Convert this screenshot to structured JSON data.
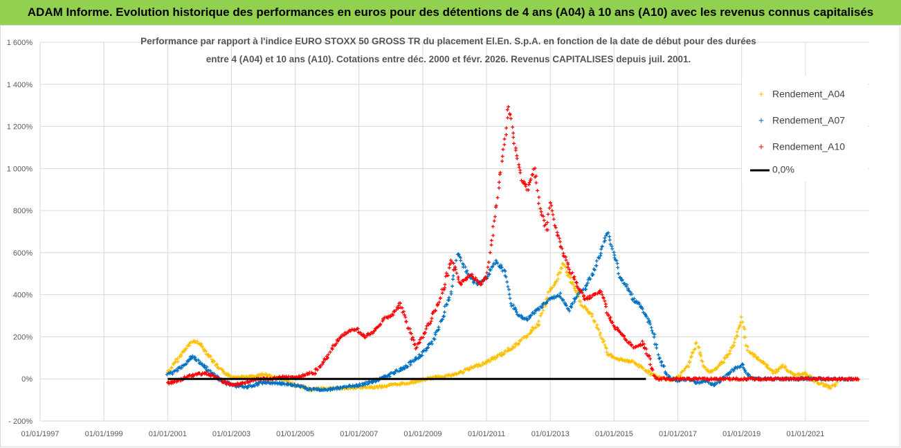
{
  "header": {
    "banner": "ADAM Informe. Evolution historique des performances en euros pour des détentions de 4 ans (A04) à 10 ans (A10) avec les revenus connus capitalisés"
  },
  "chart_data": {
    "type": "scatter",
    "title_lines": [
      "Performance par rapport à l'indice EURO STOXX 50 GROSS TR  du placement El.En. S.p.A. en fonction de la date de début pour des durées",
      "entre 4 (A04) et 10 ans (A10). Cotations entre déc. 2000 et févr. 2026. Revenus CAPITALISES depuis juil. 2001."
    ],
    "xlabel": "",
    "ylabel": "",
    "x_range": [
      1997.0,
      2023.0
    ],
    "ylim": [
      -200,
      1600
    ],
    "y_ticks": [
      {
        "value": -200,
        "label": "- 200%"
      },
      {
        "value": 0,
        "label": "0%"
      },
      {
        "value": 200,
        "label": "200%"
      },
      {
        "value": 400,
        "label": "400%"
      },
      {
        "value": 600,
        "label": "600%"
      },
      {
        "value": 800,
        "label": "800%"
      },
      {
        "value": 1000,
        "label": "1 000%"
      },
      {
        "value": 1200,
        "label": "1 200%"
      },
      {
        "value": 1400,
        "label": "1 400%"
      },
      {
        "value": 1600,
        "label": "1 600%"
      }
    ],
    "x_ticks": [
      {
        "value": 1997,
        "label": "01/01/1997"
      },
      {
        "value": 1999,
        "label": "01/01/1999"
      },
      {
        "value": 2001,
        "label": "01/01/2001"
      },
      {
        "value": 2003,
        "label": "01/01/2003"
      },
      {
        "value": 2005,
        "label": "01/01/2005"
      },
      {
        "value": 2007,
        "label": "01/01/2007"
      },
      {
        "value": 2009,
        "label": "01/01/2009"
      },
      {
        "value": 2011,
        "label": "01/01/2011"
      },
      {
        "value": 2013,
        "label": "01/01/2013"
      },
      {
        "value": 2015,
        "label": "01/01/2015"
      },
      {
        "value": 2017,
        "label": "01/01/2017"
      },
      {
        "value": 2019,
        "label": "01/01/2019"
      },
      {
        "value": 2021,
        "label": "01/01/2021"
      }
    ],
    "series": [
      {
        "name": "Rendement_A04",
        "color": "#ffc000",
        "marker": "plus",
        "points": [
          [
            2001.0,
            30
          ],
          [
            2001.3,
            90
          ],
          [
            2001.6,
            150
          ],
          [
            2001.8,
            180
          ],
          [
            2002.0,
            170
          ],
          [
            2002.2,
            130
          ],
          [
            2002.4,
            90
          ],
          [
            2002.6,
            50
          ],
          [
            2002.8,
            30
          ],
          [
            2003.0,
            10
          ],
          [
            2003.3,
            10
          ],
          [
            2003.6,
            10
          ],
          [
            2004.0,
            20
          ],
          [
            2004.3,
            10
          ],
          [
            2004.6,
            0
          ],
          [
            2005.0,
            -30
          ],
          [
            2005.5,
            -50
          ],
          [
            2006.0,
            -45
          ],
          [
            2006.5,
            -45
          ],
          [
            2007.0,
            -40
          ],
          [
            2007.5,
            -40
          ],
          [
            2008.0,
            -30
          ],
          [
            2008.5,
            -20
          ],
          [
            2009.0,
            -5
          ],
          [
            2009.5,
            10
          ],
          [
            2010.0,
            20
          ],
          [
            2010.5,
            50
          ],
          [
            2011.0,
            80
          ],
          [
            2011.5,
            120
          ],
          [
            2012.0,
            170
          ],
          [
            2012.3,
            210
          ],
          [
            2012.6,
            260
          ],
          [
            2013.0,
            420
          ],
          [
            2013.2,
            470
          ],
          [
            2013.4,
            550
          ],
          [
            2013.6,
            480
          ],
          [
            2013.8,
            420
          ],
          [
            2014.0,
            350
          ],
          [
            2014.3,
            300
          ],
          [
            2014.6,
            200
          ],
          [
            2014.8,
            120
          ],
          [
            2015.0,
            100
          ],
          [
            2015.3,
            90
          ],
          [
            2015.6,
            80
          ],
          [
            2015.8,
            60
          ],
          [
            2016.0,
            40
          ],
          [
            2016.3,
            10
          ],
          [
            2016.6,
            0
          ],
          [
            2016.8,
            -5
          ],
          [
            2017.0,
            5
          ],
          [
            2017.3,
            60
          ],
          [
            2017.6,
            170
          ],
          [
            2017.8,
            60
          ],
          [
            2018.0,
            30
          ],
          [
            2018.3,
            60
          ],
          [
            2018.6,
            120
          ],
          [
            2018.8,
            180
          ],
          [
            2019.0,
            280
          ],
          [
            2019.2,
            130
          ],
          [
            2019.5,
            100
          ],
          [
            2019.8,
            60
          ],
          [
            2020.0,
            30
          ],
          [
            2020.3,
            60
          ],
          [
            2020.6,
            20
          ],
          [
            2020.8,
            20
          ],
          [
            2021.0,
            30
          ],
          [
            2021.3,
            -10
          ],
          [
            2021.6,
            -30
          ],
          [
            2021.8,
            -40
          ],
          [
            2022.0,
            -20
          ]
        ]
      },
      {
        "name": "Rendement_A07",
        "color": "#0070c0",
        "marker": "plus",
        "points": [
          [
            2001.0,
            20
          ],
          [
            2001.3,
            40
          ],
          [
            2001.6,
            80
          ],
          [
            2001.8,
            110
          ],
          [
            2002.0,
            80
          ],
          [
            2002.3,
            40
          ],
          [
            2002.6,
            0
          ],
          [
            2003.0,
            -30
          ],
          [
            2003.5,
            -40
          ],
          [
            2004.0,
            -15
          ],
          [
            2004.5,
            -20
          ],
          [
            2005.0,
            -30
          ],
          [
            2005.5,
            -50
          ],
          [
            2006.0,
            -50
          ],
          [
            2006.5,
            -40
          ],
          [
            2007.0,
            -30
          ],
          [
            2007.5,
            -10
          ],
          [
            2008.0,
            20
          ],
          [
            2008.5,
            60
          ],
          [
            2009.0,
            120
          ],
          [
            2009.3,
            180
          ],
          [
            2009.6,
            280
          ],
          [
            2009.9,
            420
          ],
          [
            2010.1,
            600
          ],
          [
            2010.4,
            500
          ],
          [
            2010.7,
            450
          ],
          [
            2011.0,
            480
          ],
          [
            2011.3,
            560
          ],
          [
            2011.6,
            500
          ],
          [
            2011.8,
            350
          ],
          [
            2012.0,
            300
          ],
          [
            2012.3,
            280
          ],
          [
            2012.6,
            330
          ],
          [
            2013.0,
            380
          ],
          [
            2013.3,
            400
          ],
          [
            2013.6,
            330
          ],
          [
            2013.9,
            410
          ],
          [
            2014.1,
            430
          ],
          [
            2014.4,
            520
          ],
          [
            2014.6,
            620
          ],
          [
            2014.8,
            700
          ],
          [
            2015.0,
            600
          ],
          [
            2015.2,
            480
          ],
          [
            2015.4,
            440
          ],
          [
            2015.6,
            380
          ],
          [
            2015.8,
            350
          ],
          [
            2016.0,
            300
          ],
          [
            2016.2,
            240
          ],
          [
            2016.4,
            100
          ],
          [
            2016.7,
            10
          ],
          [
            2017.0,
            -10
          ],
          [
            2017.3,
            0
          ],
          [
            2017.6,
            -20
          ],
          [
            2017.9,
            -10
          ],
          [
            2018.1,
            -30
          ],
          [
            2018.4,
            0
          ],
          [
            2018.7,
            40
          ],
          [
            2019.0,
            70
          ],
          [
            2019.3,
            0
          ],
          [
            2019.6,
            0
          ],
          [
            2020.0,
            0
          ],
          [
            2021.0,
            0
          ],
          [
            2022.0,
            0
          ],
          [
            2022.5,
            0
          ]
        ]
      },
      {
        "name": "Rendement_A10",
        "color": "#ff0000",
        "marker": "plus",
        "points": [
          [
            2001.0,
            -20
          ],
          [
            2001.3,
            -10
          ],
          [
            2001.6,
            10
          ],
          [
            2001.9,
            20
          ],
          [
            2002.2,
            30
          ],
          [
            2002.6,
            0
          ],
          [
            2003.0,
            -30
          ],
          [
            2003.4,
            -20
          ],
          [
            2003.8,
            0
          ],
          [
            2004.2,
            0
          ],
          [
            2004.6,
            10
          ],
          [
            2005.0,
            5
          ],
          [
            2005.3,
            20
          ],
          [
            2005.6,
            30
          ],
          [
            2006.0,
            100
          ],
          [
            2006.3,
            180
          ],
          [
            2006.6,
            220
          ],
          [
            2006.9,
            240
          ],
          [
            2007.2,
            200
          ],
          [
            2007.5,
            230
          ],
          [
            2007.8,
            290
          ],
          [
            2008.0,
            300
          ],
          [
            2008.3,
            360
          ],
          [
            2008.5,
            260
          ],
          [
            2008.8,
            150
          ],
          [
            2009.0,
            200
          ],
          [
            2009.3,
            300
          ],
          [
            2009.6,
            400
          ],
          [
            2009.9,
            560
          ],
          [
            2010.2,
            450
          ],
          [
            2010.5,
            500
          ],
          [
            2010.8,
            450
          ],
          [
            2011.0,
            480
          ],
          [
            2011.3,
            800
          ],
          [
            2011.5,
            1050
          ],
          [
            2011.7,
            1300
          ],
          [
            2011.9,
            1100
          ],
          [
            2012.1,
            950
          ],
          [
            2012.3,
            900
          ],
          [
            2012.5,
            1000
          ],
          [
            2012.7,
            800
          ],
          [
            2012.9,
            700
          ],
          [
            2013.0,
            850
          ],
          [
            2013.2,
            700
          ],
          [
            2013.4,
            600
          ],
          [
            2013.6,
            520
          ],
          [
            2013.9,
            430
          ],
          [
            2014.1,
            380
          ],
          [
            2014.4,
            400
          ],
          [
            2014.6,
            420
          ],
          [
            2014.8,
            310
          ],
          [
            2015.0,
            250
          ],
          [
            2015.3,
            200
          ],
          [
            2015.6,
            150
          ],
          [
            2015.9,
            170
          ],
          [
            2016.1,
            100
          ],
          [
            2016.3,
            0
          ],
          [
            2017.0,
            0
          ],
          [
            2018.0,
            0
          ],
          [
            2019.0,
            0
          ],
          [
            2020.0,
            0
          ],
          [
            2021.0,
            0
          ],
          [
            2022.0,
            0
          ],
          [
            2022.7,
            0
          ]
        ]
      },
      {
        "name": "0,0%",
        "color": "#000000",
        "marker": "line",
        "points": [
          [
            2001.0,
            0
          ],
          [
            2016.0,
            0
          ]
        ]
      }
    ],
    "legend_position": "right"
  }
}
